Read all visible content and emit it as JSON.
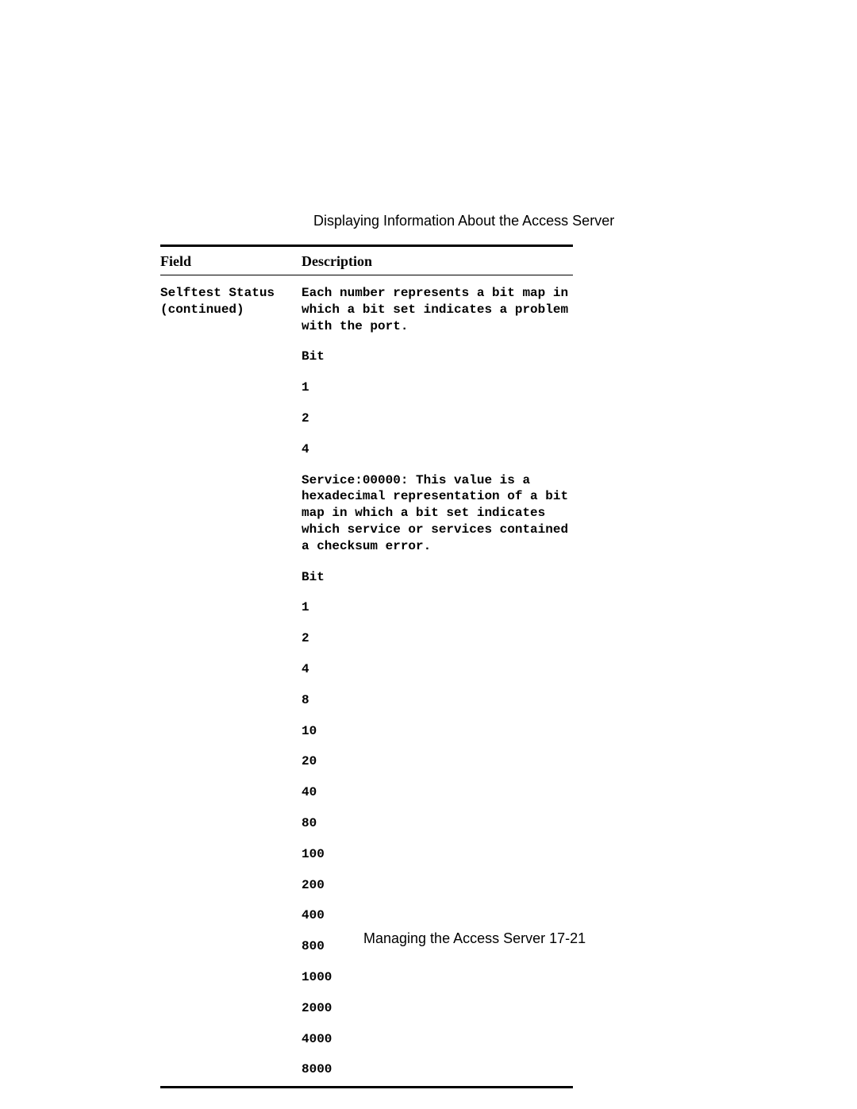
{
  "page_title": "Displaying Information About the Access Server",
  "headers": {
    "field": "Field",
    "description": "Description"
  },
  "field_name_line1": "Selftest Status",
  "field_name_line2": "(continued)",
  "description_intro": "Each number represents a bit map in which a bit set indicates a problem with the port.",
  "bit_label_1": "Bit",
  "bit_group_1": [
    "1",
    "2",
    "4"
  ],
  "service_text": "Service:00000: This value is a hexadecimal representation of a bit map in which a bit set indicates which service or services contained a checksum error.",
  "bit_label_2": "Bit",
  "bit_group_2": [
    "1",
    "2",
    "4",
    "8",
    "10",
    "20",
    "40",
    "80",
    "100",
    "200",
    "400",
    "800",
    "1000",
    "2000",
    "4000",
    "8000"
  ],
  "footer_text": "Managing the Access Server 17-21"
}
